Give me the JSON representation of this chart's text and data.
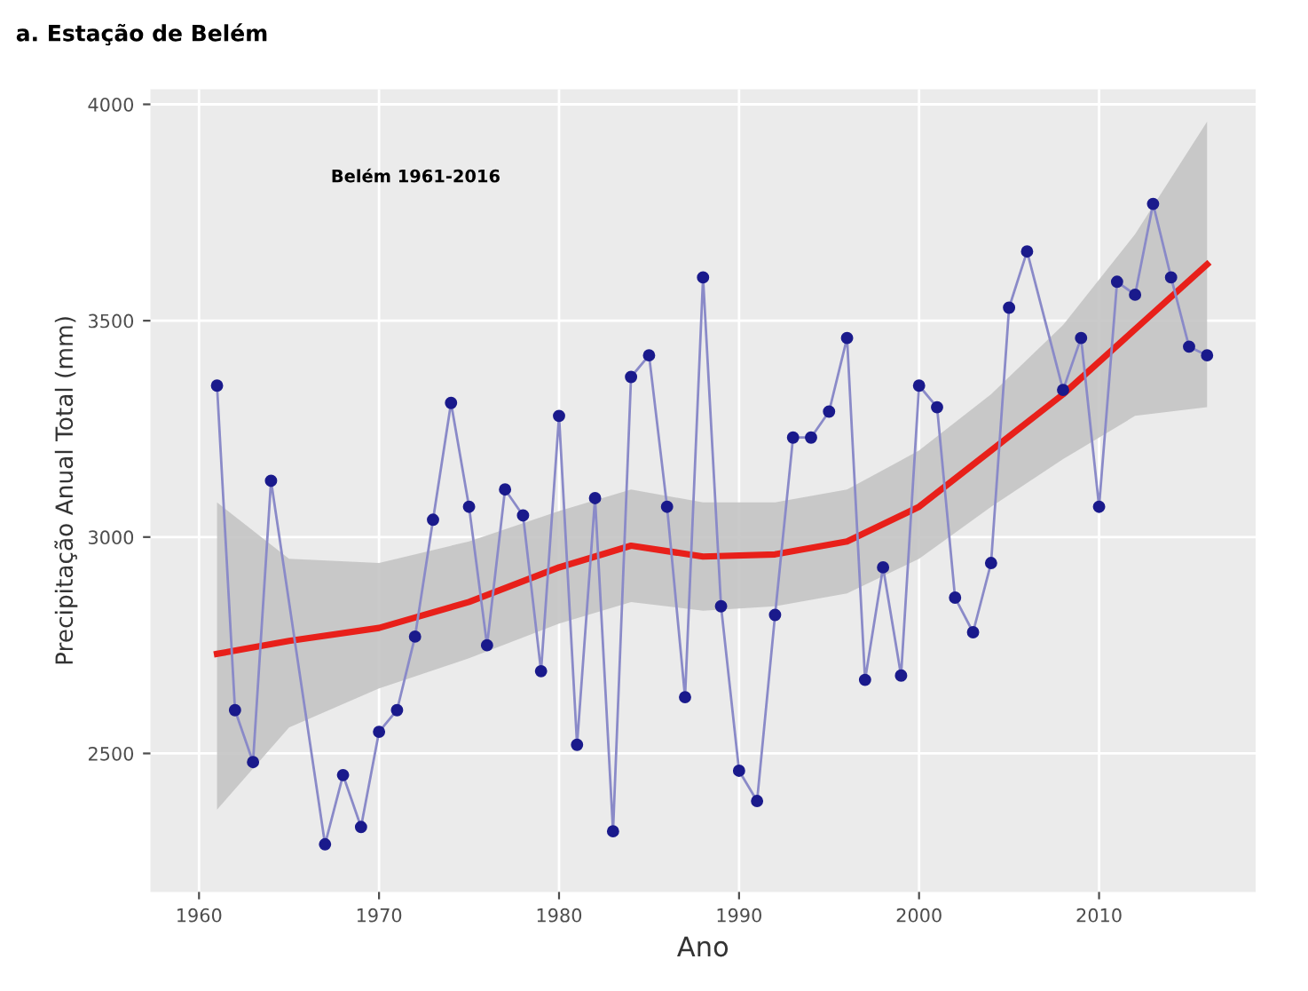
{
  "chart_data": {
    "type": "line",
    "title": "a. Estação de Belém",
    "xlabel": "Ano",
    "ylabel": "Precipitação Anual Total (mm)",
    "annotations": [
      "Belém 1961-2016"
    ],
    "xlim": [
      1957.3,
      2018.7
    ],
    "xticks": [
      1960,
      1970,
      1980,
      1990,
      2000,
      2010
    ],
    "ylim": [
      2180,
      4035
    ],
    "yticks": [
      2500,
      3000,
      3500,
      4000
    ],
    "grid": true,
    "legend": false,
    "marker": "circle",
    "line_style": "solid",
    "series": [
      {
        "color": "#8a8ac8",
        "x": [
          1961,
          1962,
          1963,
          1964,
          1967,
          1968,
          1969,
          1970,
          1971,
          1972,
          1973,
          1974,
          1975,
          1976,
          1977,
          1978,
          1979,
          1980,
          1981,
          1982,
          1983,
          1984,
          1985,
          1986,
          1987,
          1988,
          1989,
          1990,
          1991,
          1992,
          1993,
          1994,
          1995,
          1996,
          1997,
          1998,
          1999,
          2000,
          2001,
          2002,
          2003,
          2004,
          2005,
          2006,
          2008,
          2009,
          2010,
          2011,
          2012,
          2013,
          2014,
          2015,
          2016
        ],
        "values": [
          3350,
          2600,
          2480,
          3130,
          2290,
          2450,
          2330,
          2550,
          2600,
          2770,
          3040,
          3310,
          3070,
          2750,
          3110,
          3050,
          2690,
          3280,
          2520,
          3090,
          2320,
          3370,
          3420,
          3070,
          2630,
          3600,
          2840,
          2460,
          2390,
          2820,
          3230,
          3230,
          3290,
          3460,
          2670,
          2930,
          2680,
          3350,
          3300,
          2860,
          2780,
          2940,
          3530,
          3660,
          3340,
          3460,
          3070,
          3590,
          3560,
          3770,
          3600,
          3440,
          3420
        ]
      },
      {
        "color": "#e8201a",
        "marker": "none",
        "x": [
          1961,
          1965,
          1970,
          1975,
          1980,
          1984,
          1988,
          1992,
          1996,
          2000,
          2004,
          2008,
          2012,
          2016
        ],
        "values": [
          2730,
          2760,
          2790,
          2850,
          2930,
          2980,
          2955,
          2960,
          2990,
          3070,
          3200,
          3330,
          3480,
          3630
        ],
        "lower": [
          2370,
          2560,
          2650,
          2720,
          2800,
          2850,
          2830,
          2840,
          2870,
          2950,
          3070,
          3180,
          3280,
          3300
        ],
        "upper": [
          3080,
          2950,
          2940,
          2990,
          3060,
          3110,
          3080,
          3080,
          3110,
          3200,
          3330,
          3490,
          3700,
          3960
        ]
      }
    ]
  }
}
